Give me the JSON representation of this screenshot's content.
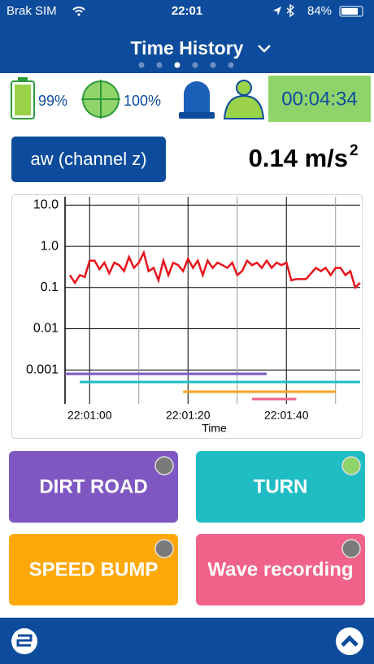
{
  "status_bar": {
    "carrier": "Brak SIM",
    "time": "22:01",
    "battery": "84%"
  },
  "header": {
    "title": "Time History"
  },
  "indicators": {
    "battery": "99%",
    "gps": "100%",
    "timer": "00:04:34"
  },
  "controls": {
    "channel": "aw (channel z)",
    "reading": "0.14 m/s",
    "reading_exponent": "2"
  },
  "chart_data": {
    "type": "line",
    "x_label": "Time",
    "log_y": true,
    "grid": true,
    "xlim": [
      "22:00:55",
      "22:01:55"
    ],
    "xticks": [
      "22:01:00",
      "22:01:20",
      "22:01:40"
    ],
    "x_minor_ticks": [
      "22:01:10",
      "22:01:30",
      "22:01:50"
    ],
    "ylim": [
      0.00015,
      16
    ],
    "yticks": [
      {
        "value": 10,
        "label": "10.0"
      },
      {
        "value": 1,
        "label": "1.0"
      },
      0.1,
      0.01,
      0.001
    ],
    "x": [
      "22:00:56",
      "22:00:57",
      "22:00:58",
      "22:00:59",
      "22:01:00",
      "22:01:01",
      "22:01:02",
      "22:01:03",
      "22:01:04",
      "22:01:05",
      "22:01:06",
      "22:01:07",
      "22:01:08",
      "22:01:09",
      "22:01:10",
      "22:01:11",
      "22:01:12",
      "22:01:13",
      "22:01:14",
      "22:01:15",
      "22:01:16",
      "22:01:17",
      "22:01:18",
      "22:01:19",
      "22:01:20",
      "22:01:21",
      "22:01:22",
      "22:01:23",
      "22:01:24",
      "22:01:25",
      "22:01:26",
      "22:01:27",
      "22:01:28",
      "22:01:29",
      "22:01:30",
      "22:01:31",
      "22:01:32",
      "22:01:33",
      "22:01:34",
      "22:01:35",
      "22:01:36",
      "22:01:37",
      "22:01:38",
      "22:01:39",
      "22:01:40",
      "22:01:41",
      "22:01:42",
      "22:01:43",
      "22:01:44",
      "22:01:45",
      "22:01:46",
      "22:01:47",
      "22:01:48",
      "22:01:49",
      "22:01:50",
      "22:01:51",
      "22:01:52",
      "22:01:53",
      "22:01:54",
      "22:01:55"
    ],
    "series": [
      {
        "color": "#e8141c",
        "values": [
          0.2,
          0.13,
          0.2,
          0.18,
          0.45,
          0.45,
          0.28,
          0.4,
          0.22,
          0.4,
          0.35,
          0.25,
          0.55,
          0.3,
          0.4,
          0.7,
          0.25,
          0.3,
          0.15,
          0.45,
          0.2,
          0.4,
          0.35,
          0.25,
          0.5,
          0.3,
          0.45,
          0.2,
          0.45,
          0.3,
          0.4,
          0.35,
          0.3,
          0.4,
          0.2,
          0.25,
          0.45,
          0.35,
          0.4,
          0.3,
          0.45,
          0.3,
          0.4,
          0.35,
          0.4,
          0.15,
          0.16,
          0.16,
          0.16,
          0.22,
          0.3,
          0.25,
          0.3,
          0.2,
          0.3,
          0.3,
          0.2,
          0.25,
          0.1,
          0.13
        ]
      }
    ],
    "events": [
      {
        "start": "22:00:55",
        "end": "22:01:36",
        "color": "#7e57c2"
      },
      {
        "start": "22:00:58",
        "end": "22:01:55",
        "color": "#1fbcc4"
      },
      {
        "start": "22:01:19",
        "end": "22:01:50",
        "color": "#f5a623"
      },
      {
        "start": "22:01:33",
        "end": "22:01:42",
        "color": "#f0628a"
      }
    ]
  },
  "buttons": [
    {
      "label": "DIRT ROAD",
      "color": "#7e57c2"
    },
    {
      "label": "TURN",
      "color": "#1fbcc4"
    },
    {
      "label": "SPEED BUMP",
      "color": "#ffa80a"
    },
    {
      "label": "Wave recording",
      "color": "#f0628a"
    }
  ]
}
